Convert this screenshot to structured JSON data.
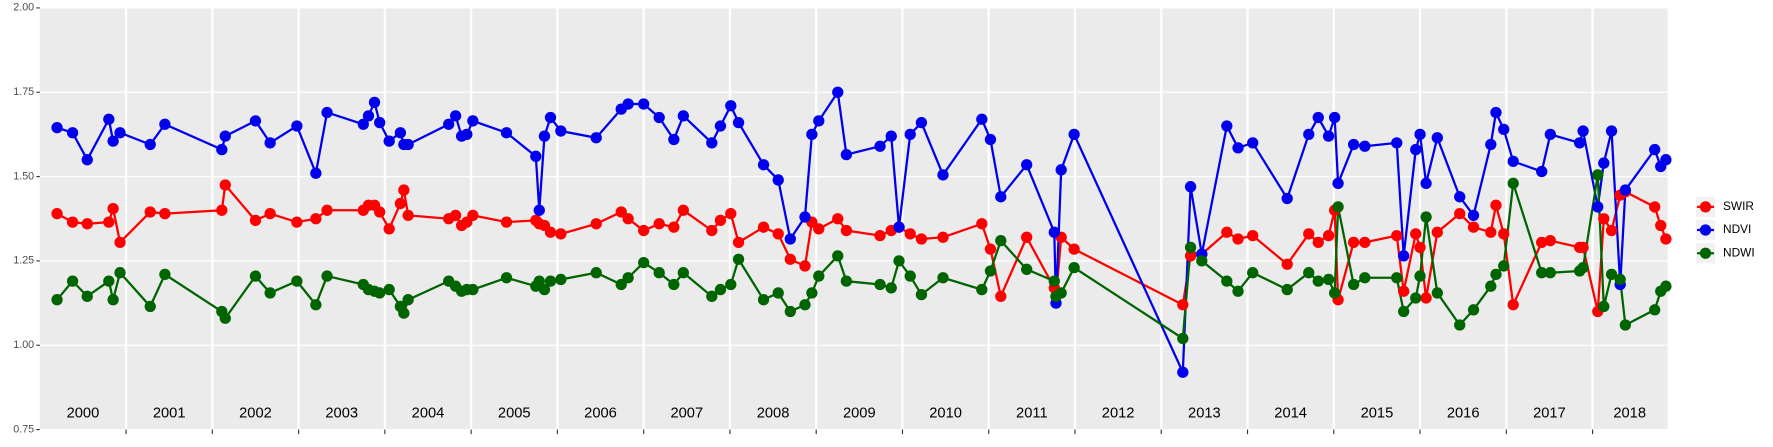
{
  "chart_data": {
    "type": "line",
    "x": [
      2000.2,
      2000.38,
      2000.55,
      2000.8,
      2000.85,
      2000.93,
      2001.28,
      2001.45,
      2002.11,
      2002.15,
      2002.5,
      2002.67,
      2002.98,
      2003.2,
      2003.33,
      2003.75,
      2003.81,
      2003.88,
      2003.94,
      2004.05,
      2004.18,
      2004.22,
      2004.27,
      2004.74,
      2004.82,
      2004.89,
      2004.95,
      2005.02,
      2005.41,
      2005.75,
      2005.79,
      2005.85,
      2005.92,
      2006.04,
      2006.45,
      2006.74,
      2006.82,
      2007.0,
      2007.18,
      2007.35,
      2007.46,
      2007.79,
      2007.89,
      2008.01,
      2008.1,
      2008.39,
      2008.56,
      2008.7,
      2008.87,
      2008.95,
      2009.03,
      2009.25,
      2009.35,
      2009.74,
      2009.87,
      2009.96,
      2010.09,
      2010.22,
      2010.47,
      2010.92,
      2011.02,
      2011.14,
      2011.44,
      2011.76,
      2011.78,
      2011.84,
      2011.99,
      2013.25,
      2013.34,
      2013.47,
      2013.76,
      2013.89,
      2014.06,
      2014.46,
      2014.71,
      2014.82,
      2014.94,
      2015.01,
      2015.05,
      2015.23,
      2015.36,
      2015.73,
      2015.81,
      2015.95,
      2016.0,
      2016.07,
      2016.2,
      2016.46,
      2016.62,
      2016.82,
      2016.88,
      2016.97,
      2017.08,
      2017.41,
      2017.51,
      2017.85,
      2017.89,
      2018.06,
      2018.13,
      2018.22,
      2018.32,
      2018.38,
      2018.72,
      2018.79,
      2018.85
    ],
    "series": [
      {
        "name": "SWIR",
        "color": "#ff0000",
        "values": [
          1.39,
          1.365,
          1.36,
          1.365,
          1.405,
          1.305,
          1.395,
          1.39,
          1.4,
          1.475,
          1.37,
          1.39,
          1.365,
          1.375,
          1.4,
          1.4,
          1.415,
          1.415,
          1.395,
          1.345,
          1.42,
          1.46,
          1.385,
          1.375,
          1.385,
          1.355,
          1.365,
          1.385,
          1.365,
          1.37,
          1.36,
          1.355,
          1.335,
          1.33,
          1.36,
          1.395,
          1.375,
          1.34,
          1.36,
          1.35,
          1.4,
          1.34,
          1.37,
          1.39,
          1.305,
          1.35,
          1.33,
          1.255,
          1.235,
          1.365,
          1.345,
          1.375,
          1.34,
          1.325,
          1.34,
          1.35,
          1.33,
          1.315,
          1.32,
          1.36,
          1.285,
          1.145,
          1.32,
          1.17,
          1.145,
          1.32,
          1.285,
          1.12,
          1.265,
          1.27,
          1.335,
          1.315,
          1.325,
          1.24,
          1.33,
          1.305,
          1.325,
          1.4,
          1.135,
          1.305,
          1.305,
          1.325,
          1.16,
          1.33,
          1.29,
          1.14,
          1.335,
          1.39,
          1.35,
          1.335,
          1.415,
          1.33,
          1.12,
          1.305,
          1.31,
          1.29,
          1.29,
          1.1,
          1.375,
          1.34,
          1.445,
          1.455,
          1.41,
          1.355,
          1.315
        ]
      },
      {
        "name": "NDVI",
        "color": "#0000ee",
        "values": [
          1.645,
          1.63,
          1.55,
          1.67,
          1.605,
          1.63,
          1.595,
          1.655,
          1.58,
          1.62,
          1.665,
          1.6,
          1.65,
          1.51,
          1.69,
          1.655,
          1.68,
          1.72,
          1.66,
          1.605,
          1.63,
          1.595,
          1.595,
          1.655,
          1.68,
          1.62,
          1.625,
          1.665,
          1.63,
          1.56,
          1.4,
          1.62,
          1.675,
          1.635,
          1.615,
          1.7,
          1.715,
          1.715,
          1.675,
          1.61,
          1.68,
          1.6,
          1.65,
          1.71,
          1.66,
          1.535,
          1.49,
          1.315,
          1.38,
          1.625,
          1.665,
          1.75,
          1.565,
          1.59,
          1.62,
          1.35,
          1.625,
          1.66,
          1.505,
          1.67,
          1.61,
          1.44,
          1.535,
          1.335,
          1.125,
          1.52,
          1.625,
          0.92,
          1.47,
          1.27,
          1.65,
          1.585,
          1.6,
          1.435,
          1.625,
          1.675,
          1.62,
          1.675,
          1.48,
          1.595,
          1.59,
          1.6,
          1.265,
          1.58,
          1.625,
          1.48,
          1.615,
          1.44,
          1.385,
          1.595,
          1.69,
          1.64,
          1.545,
          1.515,
          1.625,
          1.6,
          1.635,
          1.41,
          1.54,
          1.635,
          1.18,
          1.46,
          1.58,
          1.53,
          1.55
        ]
      },
      {
        "name": "NDWI",
        "color": "#006400",
        "values": [
          1.135,
          1.19,
          1.145,
          1.19,
          1.135,
          1.215,
          1.115,
          1.21,
          1.1,
          1.08,
          1.205,
          1.155,
          1.19,
          1.12,
          1.205,
          1.18,
          1.165,
          1.16,
          1.155,
          1.165,
          1.115,
          1.095,
          1.135,
          1.19,
          1.175,
          1.16,
          1.165,
          1.165,
          1.2,
          1.175,
          1.19,
          1.165,
          1.19,
          1.195,
          1.215,
          1.18,
          1.2,
          1.245,
          1.215,
          1.18,
          1.215,
          1.145,
          1.165,
          1.18,
          1.255,
          1.135,
          1.155,
          1.1,
          1.12,
          1.155,
          1.205,
          1.265,
          1.19,
          1.18,
          1.17,
          1.25,
          1.205,
          1.15,
          1.2,
          1.165,
          1.22,
          1.31,
          1.225,
          1.19,
          1.145,
          1.155,
          1.23,
          1.02,
          1.29,
          1.25,
          1.19,
          1.16,
          1.215,
          1.165,
          1.215,
          1.19,
          1.195,
          1.155,
          1.41,
          1.18,
          1.2,
          1.2,
          1.1,
          1.14,
          1.205,
          1.38,
          1.155,
          1.06,
          1.105,
          1.175,
          1.21,
          1.235,
          1.48,
          1.215,
          1.215,
          1.22,
          1.23,
          1.505,
          1.115,
          1.21,
          1.195,
          1.06,
          1.105,
          1.16,
          1.175
        ]
      }
    ],
    "xlim": [
      2000,
      2018.87
    ],
    "year_boundaries": [
      2001,
      2002,
      2003,
      2004,
      2005,
      2006,
      2007,
      2008,
      2009,
      2010,
      2011,
      2012,
      2013,
      2014,
      2015,
      2016,
      2017,
      2018
    ],
    "year_labels": [
      {
        "value": 2000.5,
        "label": "2000"
      },
      {
        "value": 2001.5,
        "label": "2001"
      },
      {
        "value": 2002.5,
        "label": "2002"
      },
      {
        "value": 2003.5,
        "label": "2003"
      },
      {
        "value": 2004.5,
        "label": "2004"
      },
      {
        "value": 2005.5,
        "label": "2005"
      },
      {
        "value": 2006.5,
        "label": "2006"
      },
      {
        "value": 2007.5,
        "label": "2007"
      },
      {
        "value": 2008.5,
        "label": "2008"
      },
      {
        "value": 2009.5,
        "label": "2009"
      },
      {
        "value": 2010.5,
        "label": "2010"
      },
      {
        "value": 2011.5,
        "label": "2011"
      },
      {
        "value": 2012.5,
        "label": "2012"
      },
      {
        "value": 2013.5,
        "label": "2013"
      },
      {
        "value": 2014.5,
        "label": "2014"
      },
      {
        "value": 2015.5,
        "label": "2015"
      },
      {
        "value": 2016.5,
        "label": "2016"
      },
      {
        "value": 2017.5,
        "label": "2017"
      },
      {
        "value": 2018.43,
        "label": "2018"
      }
    ],
    "ylim": [
      0.75,
      2.0
    ],
    "yticks": [
      {
        "value": 0.75,
        "label": "0.75"
      },
      {
        "value": 1.0,
        "label": "1.00"
      },
      {
        "value": 1.25,
        "label": "1.25"
      },
      {
        "value": 1.5,
        "label": "1.50"
      },
      {
        "value": 1.75,
        "label": "1.75"
      },
      {
        "value": 2.0,
        "label": "2.00"
      }
    ],
    "grid": true,
    "legend": "right"
  }
}
